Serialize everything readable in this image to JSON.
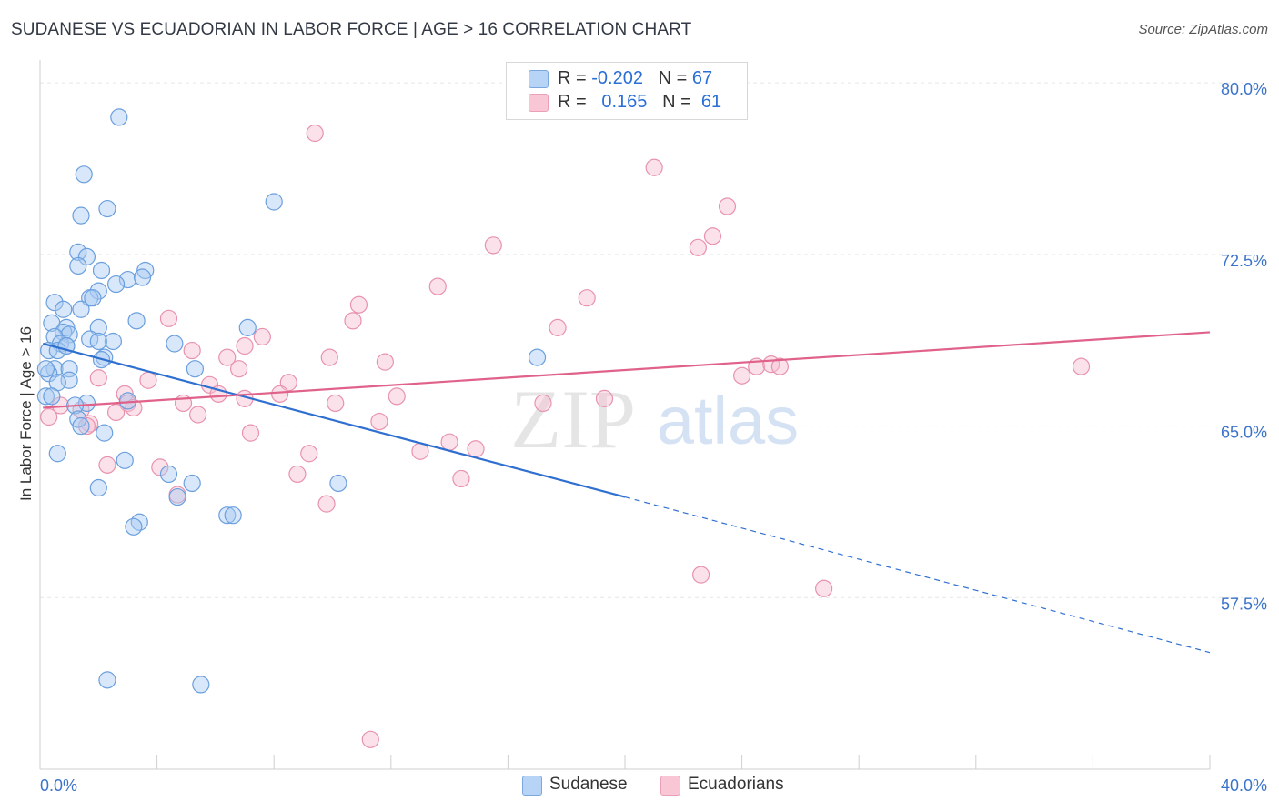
{
  "header": {
    "title": "SUDANESE VS ECUADORIAN IN LABOR FORCE | AGE > 16 CORRELATION CHART",
    "source": "Source: ZipAtlas.com"
  },
  "legend": {
    "sudanese": {
      "r_label": "R = ",
      "r_value": "-0.202",
      "n_label": "N = ",
      "n_value": "67"
    },
    "ecuadorian": {
      "r_label": "R = ",
      "r_value": "0.165",
      "n_label": "N = ",
      "n_value": "61"
    }
  },
  "bottom_legend": {
    "sudanese": "Sudanese",
    "ecuadorians": "Ecuadorians"
  },
  "watermark": {
    "zip": "ZIP",
    "atlas": "atlas"
  },
  "colors": {
    "blue_fill": "#a9c9f2",
    "blue_stroke": "#6a9fde",
    "blue_line": "#2f6fd0",
    "pink_fill": "#f6bfd0",
    "pink_stroke": "#e892ae",
    "pink_line": "#e0628a",
    "tick_text": "#3b73c9",
    "grid": "#e6e6e6"
  },
  "chart_data": {
    "type": "scatter",
    "title": "SUDANESE VS ECUADORIAN IN LABOR FORCE | AGE > 16 CORRELATION CHART",
    "xlabel": "",
    "ylabel": "In Labor Force | Age > 16",
    "xlim": [
      0,
      40
    ],
    "ylim": [
      50.0,
      81.0
    ],
    "x_tick_labels": [
      "0.0%",
      "40.0%"
    ],
    "y_ticks": [
      57.5,
      65.0,
      72.5,
      80.0
    ],
    "y_tick_labels": [
      "57.5%",
      "65.0%",
      "72.5%",
      "80.0%"
    ],
    "grid": true,
    "legend_position": "top-center",
    "series": [
      {
        "name": "Sudanese",
        "r": -0.202,
        "n": 67,
        "trend": {
          "x0": 0.1,
          "y0": 68.6,
          "x1": 20.0,
          "y1": 61.9,
          "dash_to_x": 40.0,
          "dash_to_y": 55.1
        },
        "points": [
          [
            2.7,
            78.5
          ],
          [
            1.5,
            76.0
          ],
          [
            2.3,
            74.5
          ],
          [
            8.0,
            74.8
          ],
          [
            1.4,
            74.2
          ],
          [
            1.3,
            72.6
          ],
          [
            1.6,
            72.4
          ],
          [
            1.3,
            72.0
          ],
          [
            3.6,
            71.8
          ],
          [
            2.1,
            71.8
          ],
          [
            3.0,
            71.4
          ],
          [
            2.6,
            71.2
          ],
          [
            2.0,
            70.9
          ],
          [
            1.7,
            70.6
          ],
          [
            0.5,
            70.4
          ],
          [
            0.8,
            70.1
          ],
          [
            1.4,
            70.1
          ],
          [
            3.3,
            69.6
          ],
          [
            0.4,
            69.5
          ],
          [
            0.9,
            69.3
          ],
          [
            2.0,
            69.3
          ],
          [
            7.1,
            69.3
          ],
          [
            0.8,
            69.1
          ],
          [
            1.0,
            69.0
          ],
          [
            0.5,
            68.9
          ],
          [
            0.7,
            68.6
          ],
          [
            1.7,
            68.8
          ],
          [
            2.5,
            68.7
          ],
          [
            2.0,
            68.7
          ],
          [
            4.6,
            68.6
          ],
          [
            0.9,
            68.5
          ],
          [
            0.3,
            68.3
          ],
          [
            0.6,
            68.3
          ],
          [
            2.2,
            68.0
          ],
          [
            2.1,
            67.9
          ],
          [
            0.5,
            67.5
          ],
          [
            1.0,
            67.5
          ],
          [
            5.3,
            67.5
          ],
          [
            0.3,
            67.3
          ],
          [
            1.0,
            67.0
          ],
          [
            0.6,
            66.9
          ],
          [
            0.2,
            66.3
          ],
          [
            1.6,
            66.0
          ],
          [
            1.2,
            65.9
          ],
          [
            3.0,
            66.1
          ],
          [
            1.3,
            65.3
          ],
          [
            1.4,
            65.0
          ],
          [
            2.2,
            64.7
          ],
          [
            0.6,
            63.8
          ],
          [
            2.9,
            63.5
          ],
          [
            4.4,
            62.9
          ],
          [
            5.2,
            62.5
          ],
          [
            2.0,
            62.3
          ],
          [
            4.7,
            61.9
          ],
          [
            6.4,
            61.1
          ],
          [
            6.6,
            61.1
          ],
          [
            3.4,
            60.8
          ],
          [
            3.2,
            60.6
          ],
          [
            17.0,
            68.0
          ],
          [
            10.2,
            62.5
          ],
          [
            2.3,
            53.9
          ],
          [
            5.5,
            53.7
          ],
          [
            0.4,
            66.3
          ],
          [
            0.2,
            67.5
          ],
          [
            0.9,
            68.5
          ],
          [
            1.8,
            70.6
          ],
          [
            3.5,
            71.5
          ]
        ]
      },
      {
        "name": "Ecuadorians",
        "r": 0.165,
        "n": 61,
        "trend": {
          "x0": 0.1,
          "y0": 65.8,
          "x1": 40.0,
          "y1": 69.1
        },
        "points": [
          [
            9.4,
            77.8
          ],
          [
            21.0,
            76.3
          ],
          [
            23.5,
            74.6
          ],
          [
            23.0,
            73.3
          ],
          [
            22.5,
            72.8
          ],
          [
            15.5,
            72.9
          ],
          [
            13.6,
            71.1
          ],
          [
            18.7,
            70.6
          ],
          [
            10.9,
            70.3
          ],
          [
            10.7,
            69.6
          ],
          [
            4.4,
            69.7
          ],
          [
            17.7,
            69.3
          ],
          [
            7.6,
            68.9
          ],
          [
            7.0,
            68.5
          ],
          [
            5.2,
            68.3
          ],
          [
            6.4,
            68.0
          ],
          [
            9.9,
            68.0
          ],
          [
            11.8,
            67.8
          ],
          [
            6.8,
            67.5
          ],
          [
            24.5,
            67.6
          ],
          [
            25.0,
            67.7
          ],
          [
            25.3,
            67.6
          ],
          [
            35.6,
            67.6
          ],
          [
            24.0,
            67.2
          ],
          [
            2.0,
            67.1
          ],
          [
            3.7,
            67.0
          ],
          [
            5.8,
            66.8
          ],
          [
            8.5,
            66.9
          ],
          [
            6.1,
            66.4
          ],
          [
            7.0,
            66.2
          ],
          [
            8.2,
            66.4
          ],
          [
            12.2,
            66.3
          ],
          [
            19.3,
            66.2
          ],
          [
            2.9,
            66.4
          ],
          [
            3.0,
            66.0
          ],
          [
            4.9,
            66.0
          ],
          [
            10.1,
            66.0
          ],
          [
            17.2,
            66.0
          ],
          [
            0.7,
            65.9
          ],
          [
            1.4,
            65.7
          ],
          [
            3.2,
            65.8
          ],
          [
            2.6,
            65.6
          ],
          [
            5.4,
            65.5
          ],
          [
            0.3,
            65.4
          ],
          [
            11.6,
            65.2
          ],
          [
            1.7,
            65.1
          ],
          [
            7.2,
            64.7
          ],
          [
            14.0,
            64.3
          ],
          [
            14.9,
            64.0
          ],
          [
            13.0,
            63.9
          ],
          [
            9.2,
            63.8
          ],
          [
            2.3,
            63.3
          ],
          [
            4.1,
            63.2
          ],
          [
            8.8,
            62.9
          ],
          [
            14.4,
            62.7
          ],
          [
            4.7,
            62.0
          ],
          [
            9.8,
            61.6
          ],
          [
            22.6,
            58.5
          ],
          [
            26.8,
            57.9
          ],
          [
            11.3,
            51.3
          ],
          [
            1.6,
            65.0
          ]
        ]
      }
    ]
  }
}
